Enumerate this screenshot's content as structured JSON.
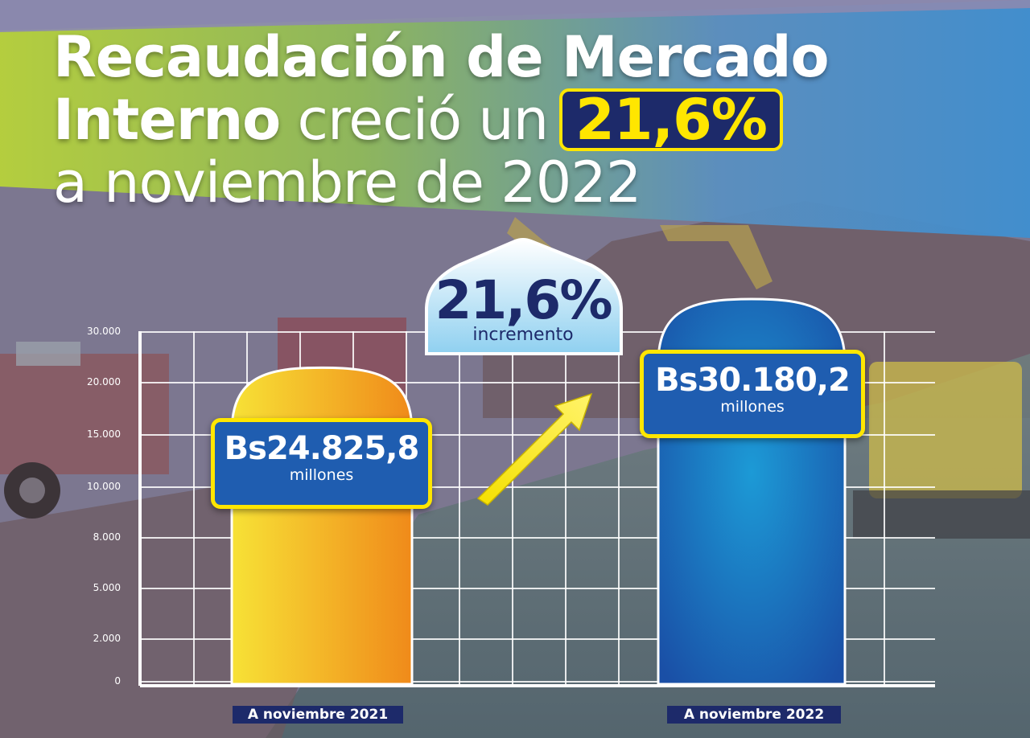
{
  "title": {
    "line1": "Recaudación de Mercado",
    "line2_bold": "Interno",
    "line2_rest": "creció un",
    "line2_highlight": "21,6%",
    "line3": "a noviembre de 2022"
  },
  "badge": {
    "percent": "21,6%",
    "label": "incremento"
  },
  "colors": {
    "navy": "#1d2a6a",
    "yellow": "#ffe600",
    "bar_2021_gradient": [
      "#f7e236",
      "#f08a1a"
    ],
    "bar_2022_gradient": [
      "#1c9ad6",
      "#1a4fa6"
    ]
  },
  "chart_data": {
    "type": "bar",
    "categories": [
      "A noviembre 2021",
      "A noviembre 2022"
    ],
    "values": [
      24825.8,
      30180.2
    ],
    "value_labels": [
      "Bs24.825,8",
      "Bs30.180,2"
    ],
    "unit_label": "millones",
    "y_ticks": [
      "0",
      "2.000",
      "5.000",
      "8.000",
      "10.000",
      "15.000",
      "20.000",
      "30.000"
    ],
    "title": "",
    "xlabel": "",
    "ylabel": "",
    "grid": true
  }
}
